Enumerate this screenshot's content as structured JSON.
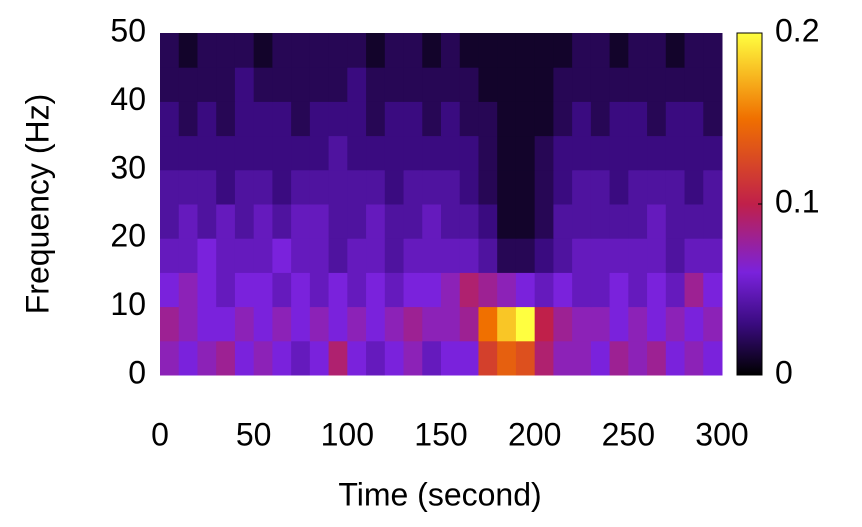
{
  "chart_data": {
    "type": "heatmap",
    "xlabel": "Time (second)",
    "ylabel": "Frequency (Hz)",
    "xlim": [
      0,
      300
    ],
    "ylim": [
      0,
      50
    ],
    "xticks": [
      0,
      50,
      100,
      150,
      200,
      250,
      300
    ],
    "yticks": [
      0,
      10,
      20,
      30,
      40,
      50
    ],
    "x": [
      5,
      15,
      25,
      35,
      45,
      55,
      65,
      75,
      85,
      95,
      105,
      115,
      125,
      135,
      145,
      155,
      165,
      175,
      185,
      195,
      205,
      215,
      225,
      235,
      245,
      255,
      265,
      275,
      285,
      295
    ],
    "y": [
      2.5,
      7.5,
      12.5,
      17.5,
      22.5,
      27.5,
      32.5,
      37.5,
      42.5,
      47.5
    ],
    "z": [
      [
        0.07,
        0.06,
        0.07,
        0.08,
        0.06,
        0.07,
        0.06,
        0.05,
        0.06,
        0.09,
        0.06,
        0.05,
        0.06,
        0.07,
        0.05,
        0.06,
        0.06,
        0.12,
        0.14,
        0.13,
        0.09,
        0.07,
        0.07,
        0.06,
        0.08,
        0.07,
        0.08,
        0.06,
        0.07,
        0.06
      ],
      [
        0.08,
        0.07,
        0.06,
        0.06,
        0.07,
        0.06,
        0.07,
        0.06,
        0.07,
        0.06,
        0.07,
        0.06,
        0.07,
        0.08,
        0.07,
        0.07,
        0.08,
        0.15,
        0.18,
        0.2,
        0.1,
        0.08,
        0.07,
        0.07,
        0.06,
        0.07,
        0.06,
        0.07,
        0.06,
        0.07
      ],
      [
        0.06,
        0.07,
        0.06,
        0.05,
        0.06,
        0.06,
        0.05,
        0.06,
        0.05,
        0.06,
        0.05,
        0.06,
        0.05,
        0.06,
        0.06,
        0.07,
        0.09,
        0.08,
        0.07,
        0.06,
        0.05,
        0.06,
        0.05,
        0.05,
        0.06,
        0.05,
        0.06,
        0.05,
        0.08,
        0.06
      ],
      [
        0.05,
        0.05,
        0.06,
        0.05,
        0.05,
        0.05,
        0.06,
        0.05,
        0.05,
        0.04,
        0.05,
        0.05,
        0.04,
        0.05,
        0.05,
        0.05,
        0.05,
        0.04,
        0.02,
        0.02,
        0.03,
        0.04,
        0.05,
        0.05,
        0.05,
        0.05,
        0.05,
        0.04,
        0.05,
        0.05
      ],
      [
        0.04,
        0.05,
        0.04,
        0.05,
        0.04,
        0.05,
        0.04,
        0.05,
        0.05,
        0.04,
        0.04,
        0.05,
        0.04,
        0.04,
        0.05,
        0.04,
        0.04,
        0.03,
        0.01,
        0.01,
        0.02,
        0.04,
        0.04,
        0.04,
        0.04,
        0.04,
        0.05,
        0.04,
        0.04,
        0.04
      ],
      [
        0.04,
        0.04,
        0.04,
        0.03,
        0.04,
        0.04,
        0.03,
        0.04,
        0.04,
        0.04,
        0.04,
        0.04,
        0.03,
        0.04,
        0.04,
        0.04,
        0.03,
        0.02,
        0.01,
        0.01,
        0.02,
        0.03,
        0.04,
        0.04,
        0.03,
        0.04,
        0.04,
        0.04,
        0.03,
        0.04
      ],
      [
        0.03,
        0.03,
        0.03,
        0.03,
        0.03,
        0.03,
        0.03,
        0.03,
        0.03,
        0.04,
        0.03,
        0.03,
        0.03,
        0.03,
        0.03,
        0.03,
        0.03,
        0.02,
        0.01,
        0.01,
        0.02,
        0.03,
        0.03,
        0.03,
        0.03,
        0.03,
        0.03,
        0.03,
        0.03,
        0.03
      ],
      [
        0.03,
        0.02,
        0.03,
        0.02,
        0.03,
        0.03,
        0.03,
        0.02,
        0.03,
        0.03,
        0.03,
        0.02,
        0.03,
        0.03,
        0.02,
        0.03,
        0.02,
        0.02,
        0.01,
        0.01,
        0.01,
        0.02,
        0.03,
        0.02,
        0.03,
        0.03,
        0.02,
        0.03,
        0.03,
        0.02
      ],
      [
        0.02,
        0.02,
        0.02,
        0.02,
        0.03,
        0.02,
        0.02,
        0.02,
        0.02,
        0.02,
        0.03,
        0.02,
        0.02,
        0.02,
        0.02,
        0.02,
        0.02,
        0.01,
        0.01,
        0.01,
        0.01,
        0.02,
        0.02,
        0.02,
        0.02,
        0.02,
        0.02,
        0.02,
        0.02,
        0.02
      ],
      [
        0.02,
        0.01,
        0.02,
        0.02,
        0.02,
        0.01,
        0.02,
        0.02,
        0.02,
        0.02,
        0.02,
        0.01,
        0.02,
        0.02,
        0.01,
        0.02,
        0.01,
        0.01,
        0.01,
        0.01,
        0.01,
        0.01,
        0.02,
        0.02,
        0.01,
        0.02,
        0.02,
        0.01,
        0.02,
        0.02
      ]
    ],
    "zlim": [
      0,
      0.2
    ],
    "zticks": [
      0,
      0.1,
      0.2
    ],
    "colormap": [
      {
        "value": 0,
        "color": "#000000"
      },
      {
        "value": 0.03,
        "color": "#3a0b80"
      },
      {
        "value": 0.06,
        "color": "#7a22dc"
      },
      {
        "value": 0.1,
        "color": "#c0204a"
      },
      {
        "value": 0.15,
        "color": "#f07000"
      },
      {
        "value": 0.2,
        "color": "#ffff40"
      }
    ]
  }
}
